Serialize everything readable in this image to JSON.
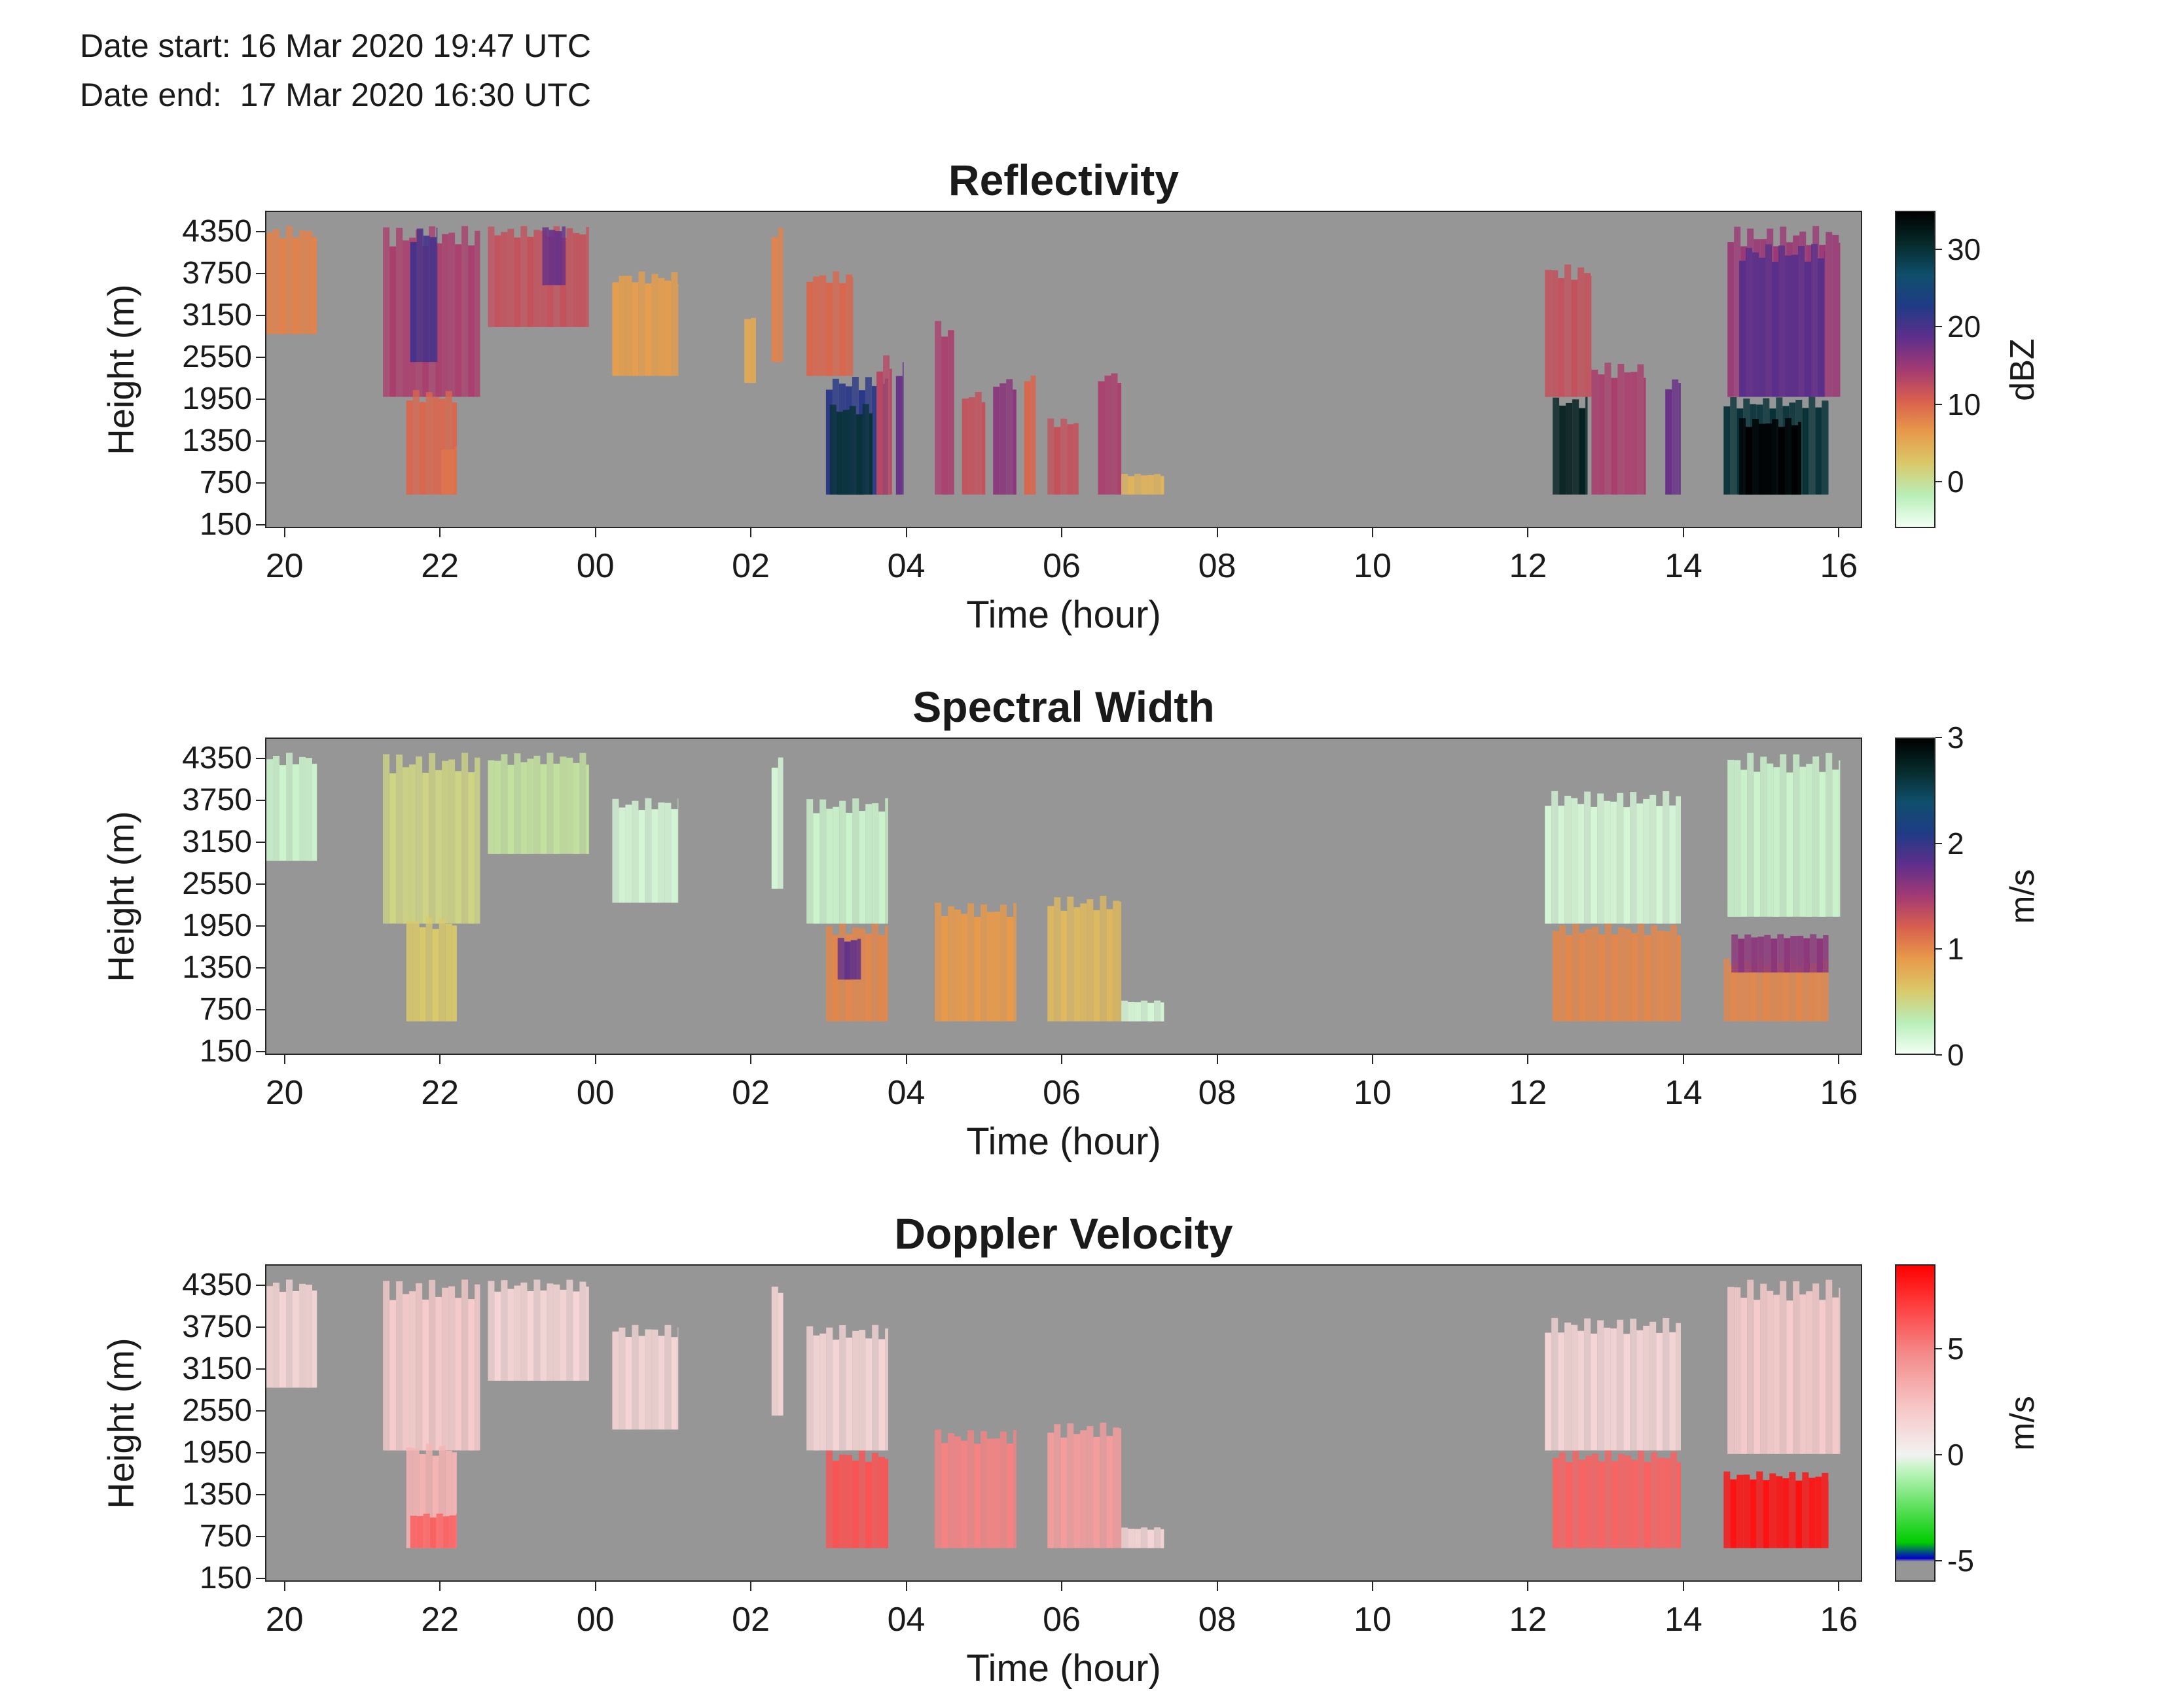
{
  "header": {
    "date_start": "Date start: 16 Mar 2020 19:47 UTC",
    "date_end": "Date end:  17 Mar 2020 16:30 UTC"
  },
  "chart_data": [
    {
      "type": "heatmap",
      "title": "Reflectivity",
      "xlabel": "Time (hour)",
      "ylabel": "Height (m)",
      "x_ticks": [
        "20",
        "22",
        "00",
        "02",
        "04",
        "06",
        "08",
        "10",
        "12",
        "14",
        "16"
      ],
      "y_ticks": [
        "150",
        "750",
        "1350",
        "1950",
        "2550",
        "3150",
        "3750",
        "4350"
      ],
      "colorbar": {
        "label": "dBZ",
        "ticks": [
          "0",
          "10",
          "20",
          "30"
        ],
        "range": [
          -6,
          35
        ],
        "colors": [
          "#f2fff4",
          "#b8eeb8",
          "#d9c96a",
          "#e89a4a",
          "#d9604d",
          "#a33a73",
          "#5e2f8c",
          "#1f3b86",
          "#0f4f6b",
          "#062a2a",
          "#000000"
        ]
      },
      "missing_color": "#969696",
      "cells": [
        {
          "t0": 19.75,
          "t1": 20.4,
          "h0": 2900,
          "h1": 4450,
          "v": 8
        },
        {
          "t0": 21.25,
          "t1": 22.5,
          "h0": 2000,
          "h1": 4450,
          "v": 14
        },
        {
          "t0": 21.6,
          "t1": 21.95,
          "h0": 2500,
          "h1": 4450,
          "v": 20
        },
        {
          "t0": 21.55,
          "t1": 22.2,
          "h0": 600,
          "h1": 2100,
          "v": 10
        },
        {
          "t0": 22.0,
          "t1": 22.2,
          "h0": 600,
          "h1": 1300,
          "v": 9
        },
        {
          "t0": 22.6,
          "t1": 23.9,
          "h0": 3000,
          "h1": 4450,
          "v": 12
        },
        {
          "t0": 23.3,
          "t1": 23.6,
          "h0": 3600,
          "h1": 4450,
          "v": 18
        },
        {
          "t0": 24.2,
          "t1": 25.05,
          "h0": 2300,
          "h1": 3800,
          "v": 6
        },
        {
          "t0": 25.9,
          "t1": 26.05,
          "h0": 2200,
          "h1": 3200,
          "v": 5
        },
        {
          "t0": 26.25,
          "t1": 26.4,
          "h0": 2500,
          "h1": 4450,
          "v": 8
        },
        {
          "t0": 26.7,
          "t1": 27.3,
          "h0": 2300,
          "h1": 3800,
          "v": 10
        },
        {
          "t0": 26.95,
          "t1": 27.75,
          "h0": 600,
          "h1": 2300,
          "v": 22
        },
        {
          "t0": 27.0,
          "t1": 27.55,
          "h0": 600,
          "h1": 1900,
          "v": 30
        },
        {
          "t0": 27.6,
          "t1": 27.8,
          "h0": 600,
          "h1": 2600,
          "v": 13
        },
        {
          "t0": 27.85,
          "t1": 27.95,
          "h0": 600,
          "h1": 2500,
          "v": 18
        },
        {
          "t0": 28.35,
          "t1": 28.6,
          "h0": 600,
          "h1": 3100,
          "v": 14
        },
        {
          "t0": 28.7,
          "t1": 29.0,
          "h0": 600,
          "h1": 2100,
          "v": 12
        },
        {
          "t0": 29.1,
          "t1": 29.4,
          "h0": 600,
          "h1": 2300,
          "v": 16
        },
        {
          "t0": 29.5,
          "t1": 29.65,
          "h0": 600,
          "h1": 2400,
          "v": 10
        },
        {
          "t0": 29.8,
          "t1": 30.2,
          "h0": 600,
          "h1": 1700,
          "v": 12
        },
        {
          "t0": 30.45,
          "t1": 30.75,
          "h0": 600,
          "h1": 2400,
          "v": 14
        },
        {
          "t0": 30.75,
          "t1": 31.3,
          "h0": 600,
          "h1": 900,
          "v": 4
        },
        {
          "t0": 36.2,
          "t1": 36.8,
          "h0": 2000,
          "h1": 3900,
          "v": 12
        },
        {
          "t0": 36.3,
          "t1": 36.75,
          "h0": 600,
          "h1": 2000,
          "v": 32
        },
        {
          "t0": 36.8,
          "t1": 37.5,
          "h0": 600,
          "h1": 2500,
          "v": 14
        },
        {
          "t0": 37.75,
          "t1": 37.95,
          "h0": 600,
          "h1": 2300,
          "v": 18
        },
        {
          "t0": 38.55,
          "t1": 40.0,
          "h0": 2000,
          "h1": 4450,
          "v": 15
        },
        {
          "t0": 38.7,
          "t1": 39.8,
          "h0": 2000,
          "h1": 4200,
          "v": 19
        },
        {
          "t0": 38.5,
          "t1": 39.85,
          "h0": 600,
          "h1": 2000,
          "v": 30
        },
        {
          "t0": 38.7,
          "t1": 39.5,
          "h0": 600,
          "h1": 1700,
          "v": 35
        }
      ]
    },
    {
      "type": "heatmap",
      "title": "Spectral Width",
      "xlabel": "Time (hour)",
      "ylabel": "Height (m)",
      "x_ticks": [
        "20",
        "22",
        "00",
        "02",
        "04",
        "06",
        "08",
        "10",
        "12",
        "14",
        "16"
      ],
      "y_ticks": [
        "150",
        "750",
        "1350",
        "1950",
        "2550",
        "3150",
        "3750",
        "4350"
      ],
      "colorbar": {
        "label": "m/s",
        "ticks": [
          "0",
          "1",
          "2",
          "3"
        ],
        "range": [
          0,
          3
        ],
        "colors": [
          "#f2fff4",
          "#b8eeb8",
          "#d9c96a",
          "#e89a4a",
          "#d9604d",
          "#a33a73",
          "#5e2f8c",
          "#1f3b86",
          "#0f4f6b",
          "#062a2a",
          "#000000"
        ]
      },
      "missing_color": "#969696",
      "cells": [
        {
          "t0": 19.75,
          "t1": 20.4,
          "h0": 2900,
          "h1": 4450,
          "v": 0.2
        },
        {
          "t0": 21.25,
          "t1": 22.5,
          "h0": 2000,
          "h1": 4450,
          "v": 0.5
        },
        {
          "t0": 21.55,
          "t1": 22.2,
          "h0": 600,
          "h1": 2100,
          "v": 0.6
        },
        {
          "t0": 22.6,
          "t1": 23.9,
          "h0": 3000,
          "h1": 4450,
          "v": 0.4
        },
        {
          "t0": 24.2,
          "t1": 25.05,
          "h0": 2300,
          "h1": 3800,
          "v": 0.15
        },
        {
          "t0": 26.25,
          "t1": 26.4,
          "h0": 2500,
          "h1": 4450,
          "v": 0.15
        },
        {
          "t0": 26.7,
          "t1": 27.75,
          "h0": 2000,
          "h1": 3800,
          "v": 0.2
        },
        {
          "t0": 26.95,
          "t1": 27.75,
          "h0": 600,
          "h1": 2000,
          "v": 1.0
        },
        {
          "t0": 27.1,
          "t1": 27.4,
          "h0": 1200,
          "h1": 1800,
          "v": 1.8
        },
        {
          "t0": 28.35,
          "t1": 29.4,
          "h0": 600,
          "h1": 2300,
          "v": 0.9
        },
        {
          "t0": 29.8,
          "t1": 30.75,
          "h0": 600,
          "h1": 2400,
          "v": 0.7
        },
        {
          "t0": 30.75,
          "t1": 31.3,
          "h0": 600,
          "h1": 900,
          "v": 0.15
        },
        {
          "t0": 36.2,
          "t1": 37.95,
          "h0": 2000,
          "h1": 3900,
          "v": 0.15
        },
        {
          "t0": 36.3,
          "t1": 37.95,
          "h0": 600,
          "h1": 2000,
          "v": 1.0
        },
        {
          "t0": 38.55,
          "t1": 40.0,
          "h0": 2100,
          "h1": 4450,
          "v": 0.2
        },
        {
          "t0": 38.5,
          "t1": 39.85,
          "h0": 600,
          "h1": 1500,
          "v": 1.0
        },
        {
          "t0": 38.6,
          "t1": 39.85,
          "h0": 1300,
          "h1": 1850,
          "v": 1.6
        }
      ]
    },
    {
      "type": "heatmap",
      "title": "Doppler Velocity",
      "xlabel": "Time (hour)",
      "ylabel": "Height (m)",
      "x_ticks": [
        "20",
        "22",
        "00",
        "02",
        "04",
        "06",
        "08",
        "10",
        "12",
        "14",
        "16"
      ],
      "y_ticks": [
        "150",
        "750",
        "1350",
        "1950",
        "2550",
        "3150",
        "3750",
        "4350"
      ],
      "colorbar": {
        "label": "m/s",
        "ticks": [
          "-5",
          "0",
          "5"
        ],
        "range": [
          -6,
          9
        ],
        "colors": [
          "#969696",
          "#969696",
          "#0000cc",
          "#00cc00",
          "#bff5bf",
          "#f2f2f2",
          "#f7c6c6",
          "#f48a8a",
          "#ff3b3b",
          "#ff0000"
        ],
        "stops": [
          0,
          0.06,
          0.07,
          0.12,
          0.35,
          0.4,
          0.55,
          0.72,
          0.88,
          1
        ]
      },
      "missing_color": "#969696",
      "cells": [
        {
          "t0": 19.75,
          "t1": 20.4,
          "h0": 2900,
          "h1": 4450,
          "v": 1.5
        },
        {
          "t0": 21.25,
          "t1": 22.5,
          "h0": 2000,
          "h1": 4450,
          "v": 2
        },
        {
          "t0": 21.55,
          "t1": 22.2,
          "h0": 600,
          "h1": 2100,
          "v": 3
        },
        {
          "t0": 21.6,
          "t1": 22.2,
          "h0": 600,
          "h1": 1100,
          "v": 6
        },
        {
          "t0": 22.6,
          "t1": 23.9,
          "h0": 3000,
          "h1": 4450,
          "v": 1.5
        },
        {
          "t0": 24.2,
          "t1": 25.05,
          "h0": 2300,
          "h1": 3800,
          "v": 1.5
        },
        {
          "t0": 26.25,
          "t1": 26.4,
          "h0": 2500,
          "h1": 4450,
          "v": 1.5
        },
        {
          "t0": 26.7,
          "t1": 27.75,
          "h0": 2000,
          "h1": 3800,
          "v": 1.5
        },
        {
          "t0": 26.95,
          "t1": 27.75,
          "h0": 600,
          "h1": 2000,
          "v": 6.5
        },
        {
          "t0": 28.35,
          "t1": 29.4,
          "h0": 600,
          "h1": 2300,
          "v": 5
        },
        {
          "t0": 29.8,
          "t1": 30.75,
          "h0": 600,
          "h1": 2400,
          "v": 4
        },
        {
          "t0": 30.75,
          "t1": 31.3,
          "h0": 600,
          "h1": 900,
          "v": 1.5
        },
        {
          "t0": 36.2,
          "t1": 37.95,
          "h0": 2000,
          "h1": 3900,
          "v": 1.5
        },
        {
          "t0": 36.3,
          "t1": 37.95,
          "h0": 600,
          "h1": 2000,
          "v": 6
        },
        {
          "t0": 38.55,
          "t1": 40.0,
          "h0": 1950,
          "h1": 4450,
          "v": 2
        },
        {
          "t0": 38.5,
          "t1": 39.85,
          "h0": 600,
          "h1": 1700,
          "v": 8.5
        }
      ]
    }
  ]
}
